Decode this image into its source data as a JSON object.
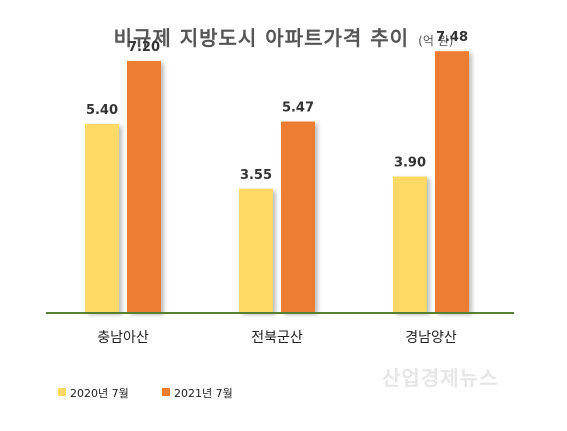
{
  "chart_data": {
    "type": "bar",
    "title": "비규제 지방도시 아파트가격 추이",
    "unit": "(억 원)",
    "categories": [
      "충남아산",
      "전북군산",
      "경남양산"
    ],
    "series": [
      {
        "name": "2020년 7월",
        "values": [
          5.4,
          3.55,
          3.9
        ],
        "color": "#FFD966"
      },
      {
        "name": "2021년 7월",
        "values": [
          7.2,
          5.47,
          7.48
        ],
        "color": "#ED7D31"
      }
    ],
    "data_labels": [
      [
        "5.40",
        "3.55",
        "3.90"
      ],
      [
        "7.20",
        "5.47",
        "7.48"
      ]
    ],
    "ylim": [
      0,
      8
    ],
    "grid": false,
    "legend": "bottom-left",
    "baseline_color": "#548235"
  },
  "watermark": "산업경제뉴스"
}
